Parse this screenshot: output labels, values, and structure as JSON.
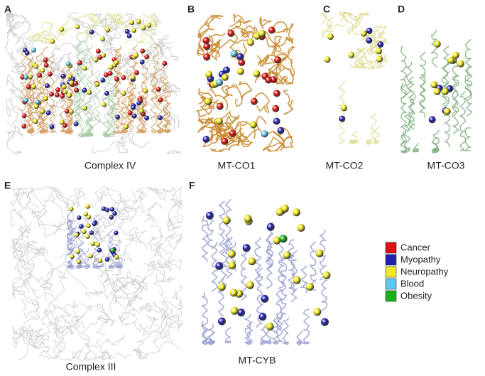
{
  "panels": [
    {
      "letter": "A",
      "caption": "Complex IV"
    },
    {
      "letter": "B",
      "caption": "MT-CO1"
    },
    {
      "letter": "C",
      "caption": "MT-CO2"
    },
    {
      "letter": "D",
      "caption": "MT-CO3"
    },
    {
      "letter": "E",
      "caption": "Complex III"
    },
    {
      "letter": "F",
      "caption": "MT-CYB"
    }
  ],
  "legend": {
    "entries": [
      {
        "label": "Cancer",
        "color": "#e01010"
      },
      {
        "label": "Myopathy",
        "color": "#2020b0"
      },
      {
        "label": "Neuropathy",
        "color": "#f2ea20"
      },
      {
        "label": "Blood",
        "color": "#60c8f0"
      },
      {
        "label": "Obesity",
        "color": "#18b018"
      }
    ]
  }
}
